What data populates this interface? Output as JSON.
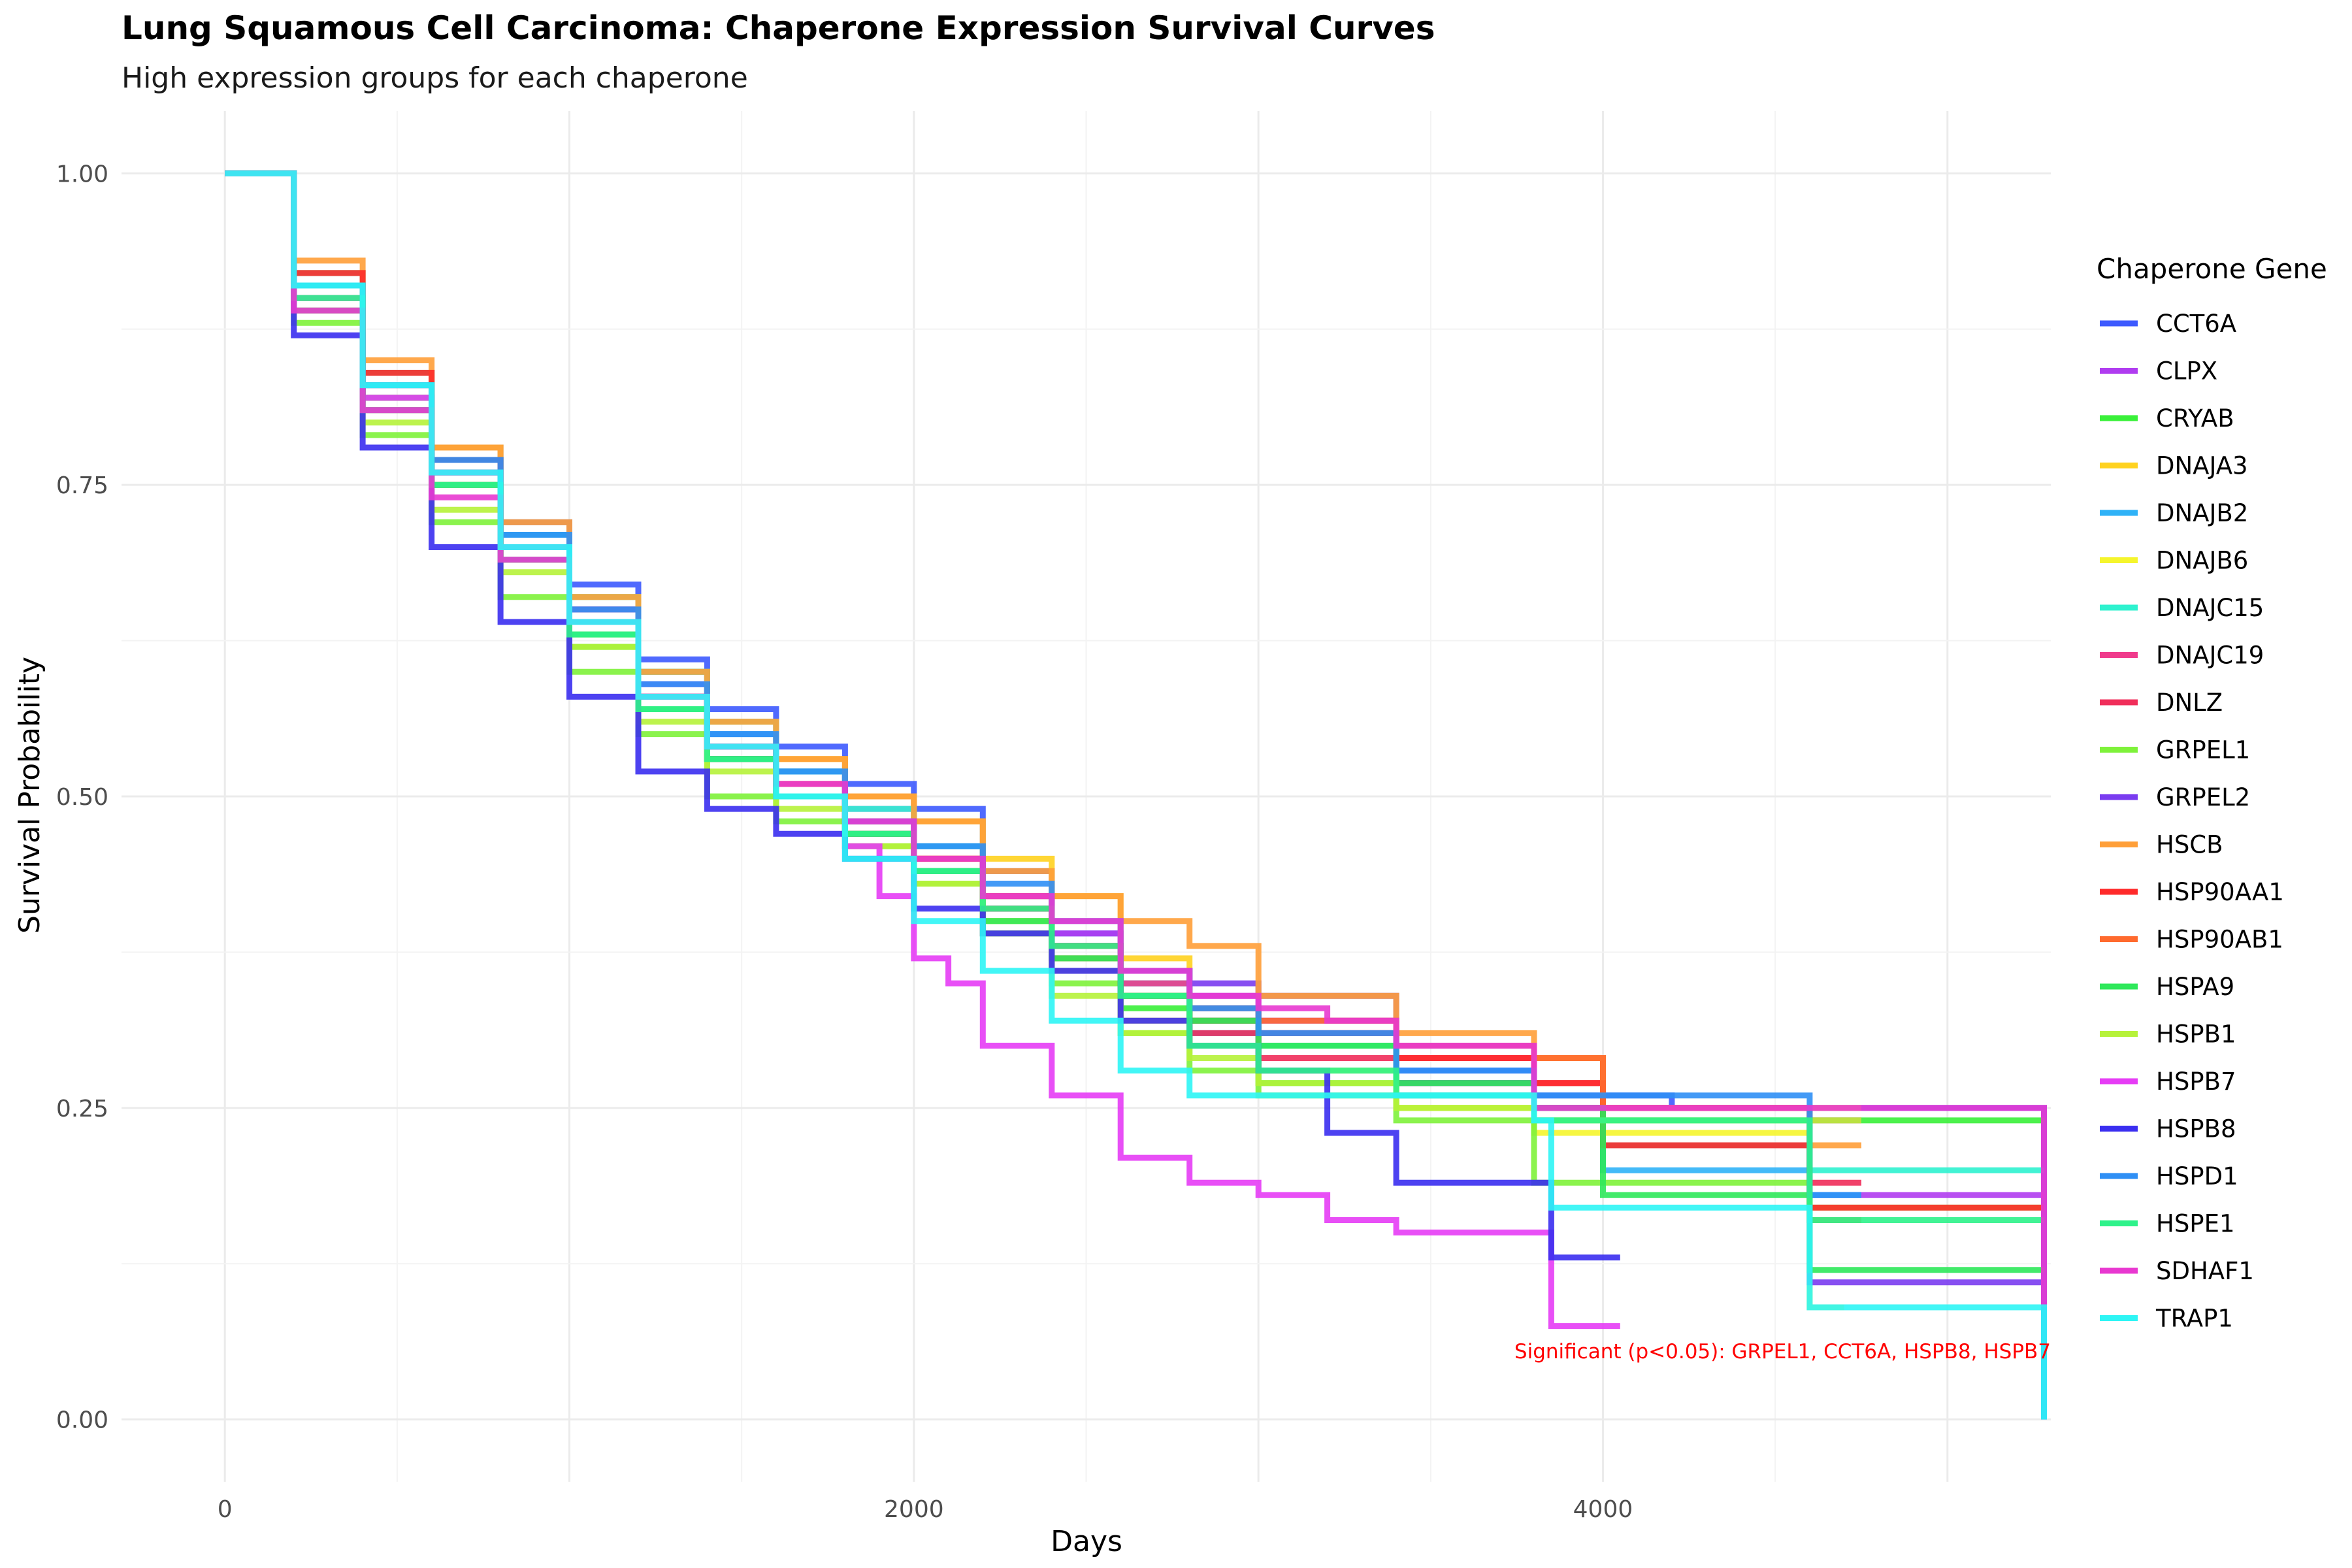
{
  "chart_data": {
    "type": "line",
    "title": "Lung Squamous Cell Carcinoma: Chaperone Expression Survival Curves",
    "subtitle": "High expression groups for each chaperone",
    "xlabel": "Days",
    "ylabel": "Survival Probability",
    "xlim": [
      -300,
      5300
    ],
    "ylim": [
      -0.05,
      1.05
    ],
    "x_ticks": [
      0,
      2000,
      4000
    ],
    "x_tick_labels": [
      "0",
      "2000",
      "4000"
    ],
    "y_ticks": [
      0,
      0.25,
      0.5,
      0.75,
      1.0
    ],
    "y_tick_labels": [
      "0.00",
      "0.25",
      "0.50",
      "0.75",
      "1.00"
    ],
    "grid": true,
    "step": true,
    "legend": {
      "title": "Chaperone Gene",
      "position": "right"
    },
    "annotation": {
      "text": "Significant (p<0.05): GRPEL1, CCT6A, HSPB8, HSPB7",
      "color": "#ff0000"
    },
    "series": [
      {
        "name": "CCT6A",
        "color": "#3d5afe",
        "x": [
          0,
          200,
          400,
          600,
          800,
          1000,
          1200,
          1400,
          1600,
          1800,
          2000,
          2200,
          2400,
          2600,
          2800,
          3000,
          3400,
          3800,
          4200,
          4600,
          5280,
          5280
        ],
        "y": [
          1,
          0.91,
          0.84,
          0.78,
          0.72,
          0.67,
          0.61,
          0.57,
          0.54,
          0.51,
          0.49,
          0.44,
          0.39,
          0.35,
          0.32,
          0.3,
          0.28,
          0.26,
          0.25,
          0.25,
          0.25,
          0.0
        ]
      },
      {
        "name": "CLPX",
        "color": "#b03cf0",
        "x": [
          0,
          200,
          400,
          600,
          800,
          1000,
          1200,
          1400,
          1600,
          1800,
          2000,
          2200,
          2400,
          2600,
          2800,
          3000,
          3400,
          3800,
          4000,
          4600,
          5280
        ],
        "y": [
          1,
          0.9,
          0.82,
          0.76,
          0.7,
          0.65,
          0.59,
          0.54,
          0.52,
          0.49,
          0.46,
          0.42,
          0.39,
          0.36,
          0.34,
          0.32,
          0.3,
          0.27,
          0.22,
          0.18,
          0.18
        ]
      },
      {
        "name": "CRYAB",
        "color": "#39f039",
        "x": [
          0,
          200,
          400,
          600,
          800,
          1000,
          1200,
          1400,
          1600,
          1800,
          2000,
          2200,
          2400,
          2600,
          2800,
          3000,
          3400,
          3800,
          4600,
          5280
        ],
        "y": [
          1,
          0.89,
          0.81,
          0.75,
          0.69,
          0.62,
          0.57,
          0.53,
          0.5,
          0.47,
          0.44,
          0.4,
          0.37,
          0.33,
          0.3,
          0.27,
          0.25,
          0.24,
          0.24,
          0.24
        ]
      },
      {
        "name": "DNAJA3",
        "color": "#ffd21f",
        "x": [
          0,
          200,
          400,
          600,
          800,
          1000,
          1200,
          1400,
          1600,
          1800,
          2000,
          2200,
          2400,
          2600,
          2800,
          3000,
          3400,
          3800,
          4000,
          4500,
          4750
        ],
        "y": [
          1,
          0.92,
          0.84,
          0.78,
          0.71,
          0.66,
          0.6,
          0.56,
          0.53,
          0.5,
          0.48,
          0.45,
          0.42,
          0.37,
          0.32,
          0.3,
          0.29,
          0.27,
          0.25,
          0.25,
          0.25
        ]
      },
      {
        "name": "DNAJB2",
        "color": "#2fb2f7",
        "x": [
          0,
          200,
          400,
          600,
          800,
          1000,
          1200,
          1400,
          1600,
          1800,
          2000,
          2200,
          2400,
          2600,
          2800,
          3000,
          3400,
          3800,
          4000,
          4600,
          4750
        ],
        "y": [
          1,
          0.91,
          0.83,
          0.77,
          0.71,
          0.65,
          0.6,
          0.55,
          0.52,
          0.48,
          0.46,
          0.41,
          0.38,
          0.34,
          0.31,
          0.28,
          0.26,
          0.25,
          0.2,
          0.18,
          0.18
        ]
      },
      {
        "name": "DNAJB6",
        "color": "#f5f52c",
        "x": [
          0,
          200,
          400,
          600,
          800,
          1000,
          1200,
          1400,
          1600,
          1800,
          2000,
          2200,
          2400,
          2600,
          2800,
          3000,
          3400,
          3800,
          4600,
          4700
        ],
        "y": [
          1,
          0.9,
          0.82,
          0.75,
          0.69,
          0.63,
          0.57,
          0.53,
          0.5,
          0.47,
          0.44,
          0.4,
          0.36,
          0.32,
          0.3,
          0.28,
          0.25,
          0.23,
          0.09,
          0.09
        ]
      },
      {
        "name": "DNAJC15",
        "color": "#2ef2cf",
        "x": [
          0,
          200,
          400,
          600,
          800,
          1000,
          1200,
          1400,
          1600,
          1800,
          2000,
          2200,
          2400,
          2600,
          2800,
          3000,
          3400,
          3800,
          4000,
          4600,
          5280
        ],
        "y": [
          1,
          0.92,
          0.84,
          0.77,
          0.71,
          0.66,
          0.6,
          0.56,
          0.52,
          0.49,
          0.46,
          0.42,
          0.38,
          0.35,
          0.32,
          0.3,
          0.27,
          0.25,
          0.22,
          0.2,
          0.2
        ]
      },
      {
        "name": "DNAJC19",
        "color": "#f03b8c",
        "x": [
          0,
          200,
          400,
          600,
          800,
          1000,
          1200,
          1400,
          1600,
          1800,
          2000,
          2200,
          2400,
          2600,
          2800,
          3000,
          3400,
          3800,
          4000,
          4600,
          4750
        ],
        "y": [
          1,
          0.9,
          0.81,
          0.75,
          0.7,
          0.65,
          0.58,
          0.53,
          0.5,
          0.47,
          0.45,
          0.41,
          0.38,
          0.35,
          0.33,
          0.31,
          0.29,
          0.27,
          0.25,
          0.24,
          0.24
        ]
      },
      {
        "name": "DNLZ",
        "color": "#f02e5a",
        "x": [
          0,
          200,
          400,
          600,
          800,
          1000,
          1200,
          1400,
          1600,
          1800,
          2000,
          2200,
          2400,
          2600,
          2800,
          3000,
          3400,
          3800,
          4600,
          4750
        ],
        "y": [
          1,
          0.91,
          0.83,
          0.76,
          0.7,
          0.64,
          0.58,
          0.54,
          0.51,
          0.48,
          0.45,
          0.42,
          0.38,
          0.34,
          0.31,
          0.29,
          0.27,
          0.25,
          0.19,
          0.19
        ]
      },
      {
        "name": "GRPEL1",
        "color": "#7ef23a",
        "x": [
          0,
          200,
          400,
          600,
          800,
          1000,
          1200,
          1400,
          1600,
          1800,
          2000,
          2200,
          2400,
          2600,
          2800,
          3000,
          3400,
          3800,
          4600,
          5280
        ],
        "y": [
          1,
          0.88,
          0.79,
          0.72,
          0.66,
          0.6,
          0.55,
          0.5,
          0.48,
          0.46,
          0.43,
          0.39,
          0.35,
          0.31,
          0.28,
          0.26,
          0.24,
          0.19,
          0.17,
          0.17
        ]
      },
      {
        "name": "GRPEL2",
        "color": "#7a3cf0",
        "x": [
          0,
          200,
          400,
          600,
          800,
          1000,
          1200,
          1400,
          1600,
          1800,
          2000,
          2200,
          2400,
          2600,
          2800,
          3000,
          3400,
          3800,
          4600,
          5280
        ],
        "y": [
          1,
          0.9,
          0.82,
          0.76,
          0.7,
          0.64,
          0.58,
          0.53,
          0.5,
          0.47,
          0.44,
          0.41,
          0.38,
          0.36,
          0.35,
          0.34,
          0.27,
          0.25,
          0.11,
          0.11
        ]
      },
      {
        "name": "HSCB",
        "color": "#ff9f38",
        "x": [
          0,
          200,
          400,
          600,
          800,
          1000,
          1200,
          1400,
          1600,
          1800,
          2000,
          2200,
          2400,
          2600,
          2800,
          3000,
          3400,
          3800,
          4000,
          4600,
          4750
        ],
        "y": [
          1,
          0.93,
          0.85,
          0.78,
          0.72,
          0.66,
          0.6,
          0.56,
          0.53,
          0.5,
          0.48,
          0.44,
          0.42,
          0.4,
          0.38,
          0.34,
          0.31,
          0.29,
          0.25,
          0.22,
          0.22
        ]
      },
      {
        "name": "HSP90AA1",
        "color": "#ff2a2a",
        "x": [
          0,
          200,
          400,
          600,
          800,
          1000,
          1200,
          1400,
          1600,
          1800,
          2000,
          2200,
          2400,
          2600,
          2800,
          3000,
          3400,
          3800,
          4000,
          4600,
          5280
        ],
        "y": [
          1,
          0.92,
          0.84,
          0.77,
          0.7,
          0.64,
          0.58,
          0.53,
          0.5,
          0.47,
          0.45,
          0.41,
          0.38,
          0.34,
          0.32,
          0.31,
          0.29,
          0.27,
          0.22,
          0.17,
          0.17
        ]
      },
      {
        "name": "HSP90AB1",
        "color": "#ff6a2e",
        "x": [
          0,
          200,
          400,
          600,
          800,
          1000,
          1200,
          1400,
          1600,
          1800,
          2000,
          2200,
          2400,
          2600,
          2800,
          3000,
          3400,
          3800,
          4000,
          4600,
          4750
        ],
        "y": [
          1,
          0.91,
          0.82,
          0.76,
          0.7,
          0.64,
          0.58,
          0.54,
          0.51,
          0.48,
          0.45,
          0.42,
          0.37,
          0.34,
          0.33,
          0.32,
          0.3,
          0.29,
          0.25,
          0.16,
          0.16
        ]
      },
      {
        "name": "HSPA9",
        "color": "#2ee85a",
        "x": [
          0,
          200,
          400,
          600,
          800,
          1000,
          1200,
          1400,
          1600,
          1800,
          2000,
          2200,
          2400,
          2600,
          2800,
          3000,
          3400,
          3800,
          4000,
          4600,
          5280
        ],
        "y": [
          1,
          0.9,
          0.82,
          0.75,
          0.69,
          0.63,
          0.57,
          0.53,
          0.5,
          0.47,
          0.44,
          0.4,
          0.37,
          0.34,
          0.32,
          0.3,
          0.27,
          0.25,
          0.18,
          0.12,
          0.12
        ]
      },
      {
        "name": "HSPB1",
        "color": "#b6f23a",
        "x": [
          0,
          200,
          400,
          600,
          800,
          1000,
          1200,
          1400,
          1600,
          1800,
          2000,
          2200,
          2400,
          2600,
          2800,
          3000,
          3400,
          3800,
          4600,
          4750
        ],
        "y": [
          1,
          0.9,
          0.8,
          0.73,
          0.68,
          0.62,
          0.56,
          0.52,
          0.49,
          0.46,
          0.43,
          0.39,
          0.34,
          0.31,
          0.29,
          0.27,
          0.25,
          0.24,
          0.24,
          0.24
        ]
      },
      {
        "name": "HSPB7",
        "color": "#e63cf5",
        "x": [
          0,
          200,
          400,
          600,
          800,
          1000,
          1200,
          1400,
          1600,
          1800,
          1900,
          2000,
          2100,
          2200,
          2400,
          2600,
          2800,
          3000,
          3200,
          3400,
          3800,
          3850,
          4050
        ],
        "y": [
          1,
          0.9,
          0.82,
          0.76,
          0.7,
          0.64,
          0.58,
          0.54,
          0.5,
          0.46,
          0.42,
          0.37,
          0.35,
          0.3,
          0.26,
          0.21,
          0.19,
          0.18,
          0.16,
          0.15,
          0.15,
          0.075,
          0.075
        ]
      },
      {
        "name": "HSPB8",
        "color": "#3a2ef0",
        "x": [
          0,
          200,
          400,
          600,
          800,
          1000,
          1200,
          1400,
          1600,
          1800,
          2000,
          2200,
          2400,
          2600,
          2800,
          3000,
          3200,
          3400,
          3800,
          3850,
          4050
        ],
        "y": [
          1,
          0.87,
          0.78,
          0.7,
          0.64,
          0.58,
          0.52,
          0.49,
          0.47,
          0.45,
          0.41,
          0.39,
          0.36,
          0.32,
          0.3,
          0.28,
          0.23,
          0.19,
          0.19,
          0.13,
          0.13
        ]
      },
      {
        "name": "HSPD1",
        "color": "#2f8ff5",
        "x": [
          0,
          200,
          400,
          600,
          800,
          1000,
          1200,
          1400,
          1600,
          1800,
          2000,
          2200,
          2400,
          2600,
          2800,
          3000,
          3400,
          3800,
          4600,
          4750
        ],
        "y": [
          1,
          0.91,
          0.83,
          0.77,
          0.71,
          0.65,
          0.59,
          0.55,
          0.52,
          0.48,
          0.46,
          0.43,
          0.4,
          0.36,
          0.33,
          0.31,
          0.28,
          0.26,
          0.18,
          0.18
        ]
      },
      {
        "name": "HSPE1",
        "color": "#2ef28a",
        "x": [
          0,
          200,
          400,
          600,
          800,
          1000,
          1200,
          1400,
          1600,
          1800,
          2000,
          2200,
          2400,
          2600,
          2800,
          3000,
          3400,
          3800,
          4600,
          5280
        ],
        "y": [
          1,
          0.9,
          0.81,
          0.75,
          0.69,
          0.63,
          0.57,
          0.53,
          0.5,
          0.47,
          0.44,
          0.41,
          0.38,
          0.34,
          0.3,
          0.28,
          0.26,
          0.24,
          0.16,
          0.16
        ]
      },
      {
        "name": "SDHAF1",
        "color": "#e838d0",
        "x": [
          0,
          200,
          400,
          600,
          800,
          1000,
          1200,
          1400,
          1600,
          1800,
          2000,
          2200,
          2400,
          2600,
          2800,
          3000,
          3200,
          3400,
          3800,
          4600,
          5280,
          5280
        ],
        "y": [
          1,
          0.89,
          0.81,
          0.74,
          0.69,
          0.64,
          0.58,
          0.54,
          0.51,
          0.48,
          0.45,
          0.42,
          0.4,
          0.36,
          0.34,
          0.33,
          0.32,
          0.3,
          0.25,
          0.25,
          0.25,
          0.09
        ]
      },
      {
        "name": "TRAP1",
        "color": "#2ef5f5",
        "x": [
          0,
          200,
          400,
          600,
          800,
          1000,
          1200,
          1400,
          1600,
          1800,
          2000,
          2200,
          2400,
          2600,
          2800,
          3000,
          3400,
          3800,
          3850,
          4600,
          5280,
          5280
        ],
        "y": [
          1,
          0.91,
          0.83,
          0.76,
          0.7,
          0.64,
          0.58,
          0.54,
          0.5,
          0.45,
          0.4,
          0.36,
          0.32,
          0.28,
          0.26,
          0.26,
          0.26,
          0.24,
          0.17,
          0.09,
          0.09,
          0.0
        ]
      }
    ]
  }
}
